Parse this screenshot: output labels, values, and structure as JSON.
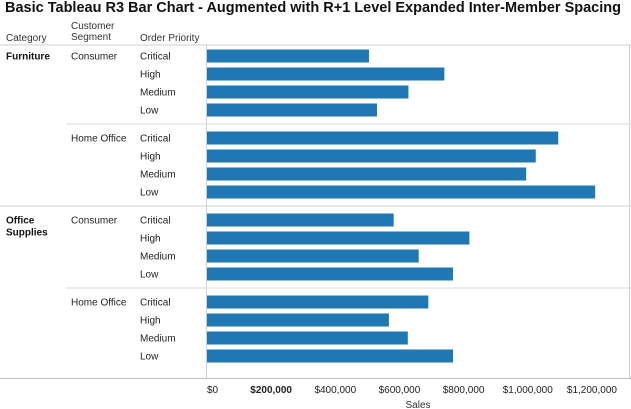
{
  "chart_data": {
    "type": "bar",
    "orientation": "horizontal",
    "title": "Basic Tableau R3 Bar Chart - Augmented with R+1 Level Expanded Inter-Member Spacing",
    "row_headers": [
      "Category",
      "Customer Segment",
      "Order Priority"
    ],
    "xlabel": "Sales",
    "xlim": [
      0,
      1300000
    ],
    "x_ticks": [
      {
        "value": 0,
        "label": "$0",
        "bold": false
      },
      {
        "value": 200000,
        "label": "$200,000",
        "bold": true
      },
      {
        "value": 400000,
        "label": "$400,000",
        "bold": false
      },
      {
        "value": 600000,
        "label": "$600,000",
        "bold": false
      },
      {
        "value": 800000,
        "label": "$800,000",
        "bold": false
      },
      {
        "value": 1000000,
        "label": "$1,000,000",
        "bold": false
      },
      {
        "value": 1200000,
        "label": "$1,200,000",
        "bold": false
      }
    ],
    "bar_color": "#1f77b4",
    "groups": [
      {
        "category": "Furniture",
        "segments": [
          {
            "segment": "Consumer",
            "rows": [
              {
                "priority": "Critical",
                "value": 505000
              },
              {
                "priority": "High",
                "value": 740000
              },
              {
                "priority": "Medium",
                "value": 628000
              },
              {
                "priority": "Low",
                "value": 530000
              }
            ]
          },
          {
            "segment": "Home Office",
            "rows": [
              {
                "priority": "Critical",
                "value": 1095000
              },
              {
                "priority": "High",
                "value": 1025000
              },
              {
                "priority": "Medium",
                "value": 995000
              },
              {
                "priority": "Low",
                "value": 1210000
              }
            ]
          }
        ]
      },
      {
        "category": "Office Supplies",
        "segments": [
          {
            "segment": "Consumer",
            "rows": [
              {
                "priority": "Critical",
                "value": 582000
              },
              {
                "priority": "High",
                "value": 818000
              },
              {
                "priority": "Medium",
                "value": 660000
              },
              {
                "priority": "Low",
                "value": 767000
              }
            ]
          },
          {
            "segment": "Home Office",
            "rows": [
              {
                "priority": "Critical",
                "value": 690000
              },
              {
                "priority": "High",
                "value": 567000
              },
              {
                "priority": "Medium",
                "value": 626000
              },
              {
                "priority": "Low",
                "value": 767000
              }
            ]
          }
        ]
      }
    ]
  }
}
